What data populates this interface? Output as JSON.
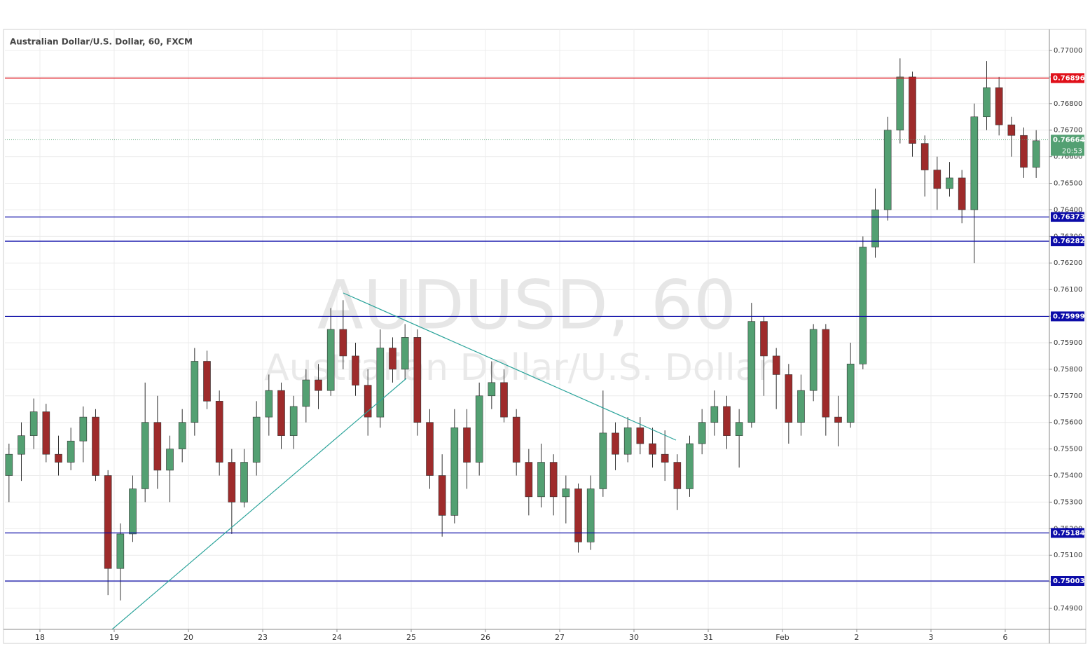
{
  "chart_data": {
    "type": "candlestick",
    "title": "Australian Dollar/U.S. Dollar, 60, FXCM",
    "watermark": "AUDUSD, 60",
    "watermark_subtitle": "Australian Dollar/U.S. Dollar",
    "up_color": "#53a072",
    "down_color": "#9e2b2b",
    "grid": true,
    "ylim": [
      0.74821,
      0.77079
    ],
    "yticks": [
      {
        "value": 0.749,
        "label": "0.74900"
      },
      {
        "value": 0.75,
        "label": "0.75000"
      },
      {
        "value": 0.751,
        "label": "0.75100"
      },
      {
        "value": 0.752,
        "label": "0.75200"
      },
      {
        "value": 0.753,
        "label": "0.75300"
      },
      {
        "value": 0.754,
        "label": "0.75400"
      },
      {
        "value": 0.755,
        "label": "0.75500"
      },
      {
        "value": 0.756,
        "label": "0.75600"
      },
      {
        "value": 0.757,
        "label": "0.75700"
      },
      {
        "value": 0.758,
        "label": "0.75800"
      },
      {
        "value": 0.759,
        "label": "0.75900"
      },
      {
        "value": 0.76,
        "label": "0.76000"
      },
      {
        "value": 0.761,
        "label": "0.76100"
      },
      {
        "value": 0.762,
        "label": "0.76200"
      },
      {
        "value": 0.763,
        "label": "0.76300"
      },
      {
        "value": 0.764,
        "label": "0.76400"
      },
      {
        "value": 0.765,
        "label": "0.76500"
      },
      {
        "value": 0.766,
        "label": "0.76600"
      },
      {
        "value": 0.767,
        "label": "0.76700"
      },
      {
        "value": 0.768,
        "label": "0.76800"
      },
      {
        "value": 0.769,
        "label": "0.76900"
      },
      {
        "value": 0.77,
        "label": "0.77000"
      }
    ],
    "xticks": [
      {
        "value": 3,
        "label": "18"
      },
      {
        "value": 9,
        "label": "19"
      },
      {
        "value": 15,
        "label": "20"
      },
      {
        "value": 21,
        "label": "23"
      },
      {
        "value": 27,
        "label": "24"
      },
      {
        "value": 33,
        "label": "25"
      },
      {
        "value": 39,
        "label": "26"
      },
      {
        "value": 45,
        "label": "27"
      },
      {
        "value": 51,
        "label": "30"
      },
      {
        "value": 57,
        "label": "31"
      },
      {
        "value": 63,
        "label": "Feb"
      },
      {
        "value": 69,
        "label": "2"
      },
      {
        "value": 75,
        "label": "3"
      },
      {
        "value": 81,
        "label": "6"
      }
    ],
    "levels": [
      {
        "value": 0.76896,
        "color": "#e0101a"
      },
      {
        "value": 0.76373,
        "color": "#0c0ca8"
      },
      {
        "value": 0.76282,
        "color": "#0c0ca8"
      },
      {
        "value": 0.75999,
        "color": "#0c0ca8"
      },
      {
        "value": 0.75184,
        "color": "#0c0ca8"
      },
      {
        "value": 0.75003,
        "color": "#0c0ca8"
      }
    ],
    "last_price": 0.76664,
    "last_price_color": "#53a072",
    "countdown": "20:53",
    "open": [
      0.754,
      0.7548,
      0.7555,
      0.7564,
      0.7548,
      0.7545,
      0.7553,
      0.7562,
      0.754,
      0.7505,
      0.7518,
      0.7535,
      0.756,
      0.7542,
      0.755,
      0.756,
      0.7583,
      0.7568,
      0.7545,
      0.753,
      0.7545,
      0.7562,
      0.7572,
      0.7555,
      0.7566,
      0.7576,
      0.7572,
      0.7595,
      0.7585,
      0.7574,
      0.7562,
      0.7588,
      0.758,
      0.7592,
      0.756,
      0.754,
      0.7525,
      0.7558,
      0.7545,
      0.757,
      0.7575,
      0.7562,
      0.7545,
      0.7532,
      0.7545,
      0.7532,
      0.7535,
      0.7515,
      0.7535,
      0.7556,
      0.7548,
      0.7558,
      0.7552,
      0.7548,
      0.7545,
      0.7535,
      0.7552,
      0.756,
      0.7566,
      0.7555,
      0.756,
      0.7598,
      0.7585,
      0.7578,
      0.756,
      0.7572,
      0.7595,
      0.7562,
      0.756,
      0.7582,
      0.7626,
      0.764,
      0.767,
      0.769,
      0.7665,
      0.7655,
      0.7648,
      0.7652,
      0.764,
      0.7675,
      0.7686,
      0.7672,
      0.7668,
      0.7656
    ],
    "high": [
      0.7552,
      0.756,
      0.7569,
      0.7567,
      0.7555,
      0.7558,
      0.7566,
      0.7565,
      0.7542,
      0.7522,
      0.754,
      0.7575,
      0.757,
      0.7555,
      0.7565,
      0.7588,
      0.7587,
      0.7572,
      0.755,
      0.755,
      0.7568,
      0.7578,
      0.7575,
      0.757,
      0.758,
      0.7582,
      0.7603,
      0.7606,
      0.759,
      0.758,
      0.7595,
      0.7592,
      0.7597,
      0.7595,
      0.7565,
      0.7548,
      0.7565,
      0.7565,
      0.7575,
      0.7583,
      0.758,
      0.7565,
      0.755,
      0.7552,
      0.7548,
      0.754,
      0.7537,
      0.754,
      0.7572,
      0.756,
      0.7562,
      0.7562,
      0.7558,
      0.7557,
      0.7548,
      0.7555,
      0.7565,
      0.7572,
      0.757,
      0.7565,
      0.7605,
      0.76,
      0.7588,
      0.7582,
      0.7578,
      0.7597,
      0.7597,
      0.757,
      0.759,
      0.763,
      0.7648,
      0.7675,
      0.7697,
      0.7692,
      0.7668,
      0.766,
      0.7658,
      0.7655,
      0.768,
      0.7696,
      0.769,
      0.7675,
      0.7671,
      0.767
    ],
    "low": [
      0.753,
      0.7538,
      0.755,
      0.7545,
      0.754,
      0.7542,
      0.7545,
      0.7538,
      0.7495,
      0.7493,
      0.7515,
      0.753,
      0.7535,
      0.753,
      0.7545,
      0.7555,
      0.7565,
      0.754,
      0.7518,
      0.7528,
      0.754,
      0.7555,
      0.755,
      0.755,
      0.756,
      0.7565,
      0.757,
      0.758,
      0.757,
      0.7555,
      0.7558,
      0.7575,
      0.7576,
      0.7555,
      0.7535,
      0.7517,
      0.7522,
      0.7535,
      0.754,
      0.7565,
      0.756,
      0.754,
      0.7525,
      0.7528,
      0.7525,
      0.7522,
      0.7511,
      0.7512,
      0.7532,
      0.7542,
      0.7545,
      0.7548,
      0.7543,
      0.7538,
      0.7527,
      0.7532,
      0.7548,
      0.7555,
      0.755,
      0.7543,
      0.7558,
      0.757,
      0.7565,
      0.7552,
      0.7555,
      0.7568,
      0.7555,
      0.7551,
      0.7558,
      0.758,
      0.7622,
      0.7636,
      0.7665,
      0.766,
      0.7645,
      0.764,
      0.7645,
      0.7635,
      0.762,
      0.767,
      0.7668,
      0.766,
      0.7652,
      0.7652
    ],
    "close": [
      0.7548,
      0.7555,
      0.7564,
      0.7548,
      0.7545,
      0.7553,
      0.7562,
      0.754,
      0.7505,
      0.7518,
      0.7535,
      0.756,
      0.7542,
      0.755,
      0.756,
      0.7583,
      0.7568,
      0.7545,
      0.753,
      0.7545,
      0.7562,
      0.7572,
      0.7555,
      0.7566,
      0.7576,
      0.7572,
      0.7595,
      0.7585,
      0.7574,
      0.7562,
      0.7588,
      0.758,
      0.7592,
      0.756,
      0.754,
      0.7525,
      0.7558,
      0.7545,
      0.757,
      0.7575,
      0.7562,
      0.7545,
      0.7532,
      0.7545,
      0.7532,
      0.7535,
      0.7515,
      0.7535,
      0.7556,
      0.7548,
      0.7558,
      0.7552,
      0.7548,
      0.7545,
      0.7535,
      0.7552,
      0.756,
      0.7566,
      0.7555,
      0.756,
      0.7598,
      0.7585,
      0.7578,
      0.756,
      0.7572,
      0.7595,
      0.7562,
      0.756,
      0.7582,
      0.7626,
      0.764,
      0.767,
      0.769,
      0.7665,
      0.7655,
      0.7648,
      0.7652,
      0.764,
      0.7675,
      0.7686,
      0.7672,
      0.7668,
      0.7656,
      0.7666
    ]
  }
}
